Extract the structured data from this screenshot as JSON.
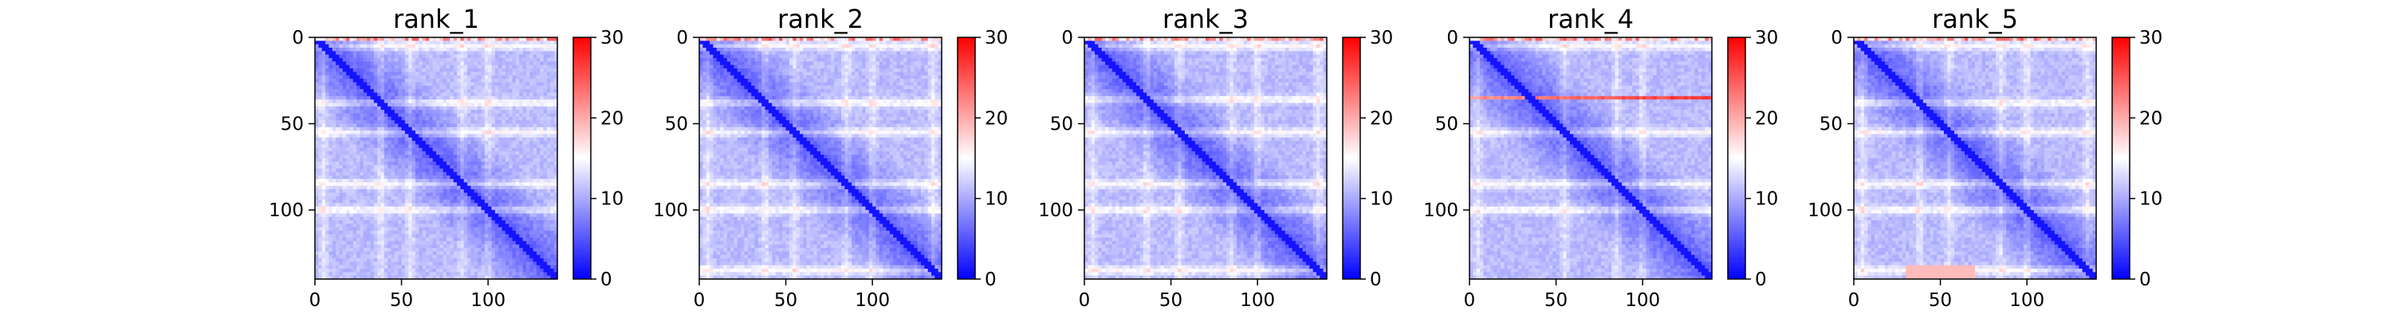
{
  "chart_data": [
    {
      "type": "heatmap",
      "title": "rank_1",
      "matrix_size": 140,
      "xticks": [
        0,
        50,
        100
      ],
      "yticks": [
        0,
        50,
        100
      ],
      "colorbar": {
        "min": 0,
        "max": 30,
        "ticks": [
          0,
          10,
          20,
          30
        ],
        "colors": [
          "#0000ff",
          "#ffffff",
          "#ff0000"
        ]
      },
      "features": {
        "diagonal": true,
        "bright_rows": [
          5,
          38,
          55,
          85,
          100
        ],
        "red_rows": [],
        "red_patch": null
      }
    },
    {
      "type": "heatmap",
      "title": "rank_2",
      "matrix_size": 140,
      "xticks": [
        0,
        50,
        100
      ],
      "yticks": [
        0,
        50,
        100
      ],
      "colorbar": {
        "min": 0,
        "max": 30,
        "ticks": [
          0,
          10,
          20,
          30
        ],
        "colors": [
          "#0000ff",
          "#ffffff",
          "#ff0000"
        ]
      },
      "features": {
        "diagonal": true,
        "bright_rows": [
          5,
          38,
          55,
          85,
          100,
          135
        ],
        "red_rows": [],
        "red_patch": null
      }
    },
    {
      "type": "heatmap",
      "title": "rank_3",
      "matrix_size": 140,
      "xticks": [
        0,
        50,
        100
      ],
      "yticks": [
        0,
        50,
        100
      ],
      "colorbar": {
        "min": 0,
        "max": 30,
        "ticks": [
          0,
          10,
          20,
          30
        ],
        "colors": [
          "#0000ff",
          "#ffffff",
          "#ff0000"
        ]
      },
      "features": {
        "diagonal": true,
        "bright_rows": [
          5,
          36,
          55,
          85,
          100,
          135
        ],
        "red_rows": [],
        "red_patch": null
      }
    },
    {
      "type": "heatmap",
      "title": "rank_4",
      "matrix_size": 140,
      "xticks": [
        0,
        50,
        100
      ],
      "yticks": [
        0,
        50,
        100
      ],
      "colorbar": {
        "min": 0,
        "max": 30,
        "ticks": [
          0,
          10,
          20,
          30
        ],
        "colors": [
          "#0000ff",
          "#ffffff",
          "#ff0000"
        ]
      },
      "features": {
        "diagonal": true,
        "bright_rows": [
          5,
          55,
          85,
          100
        ],
        "red_rows": [
          35
        ],
        "red_patch": null
      }
    },
    {
      "type": "heatmap",
      "title": "rank_5",
      "matrix_size": 140,
      "xticks": [
        0,
        50,
        100
      ],
      "yticks": [
        0,
        50,
        100
      ],
      "colorbar": {
        "min": 0,
        "max": 30,
        "ticks": [
          0,
          10,
          20,
          30
        ],
        "colors": [
          "#0000ff",
          "#ffffff",
          "#ff0000"
        ]
      },
      "features": {
        "diagonal": true,
        "bright_rows": [
          5,
          38,
          55,
          85,
          100,
          135
        ],
        "red_rows": [],
        "red_patch": {
          "x": [
            30,
            70
          ],
          "y": [
            133,
            140
          ]
        }
      }
    }
  ]
}
